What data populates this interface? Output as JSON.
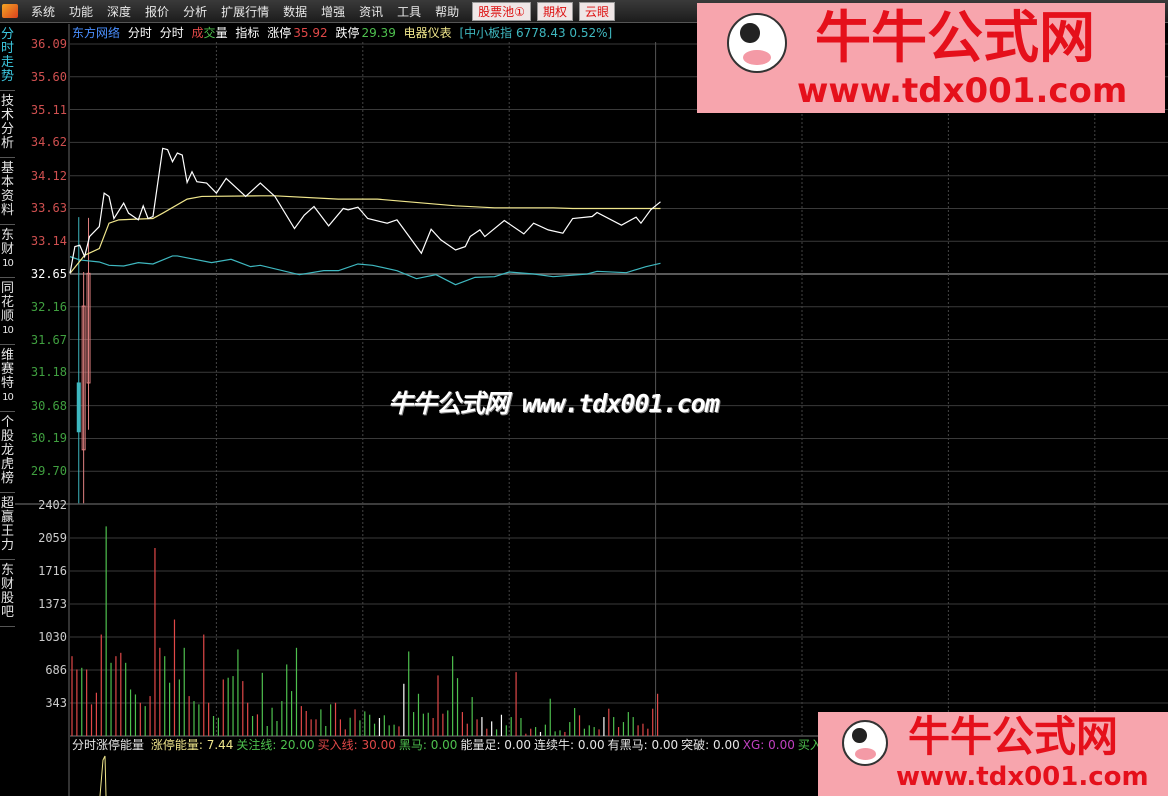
{
  "menubar": {
    "items": [
      "系统",
      "功能",
      "深度",
      "报价",
      "分析",
      "扩展行情",
      "数据",
      "增强",
      "资讯",
      "工具",
      "帮助"
    ],
    "buttons": [
      "股票池①",
      "期权",
      "云眼"
    ]
  },
  "sidebar": {
    "tabs": [
      {
        "chars": [
          "分",
          "时",
          "走",
          "势"
        ],
        "active": true
      },
      {
        "chars": [
          "技",
          "术",
          "分",
          "析"
        ]
      },
      {
        "chars": [
          "基",
          "本",
          "资",
          "料"
        ]
      },
      {
        "chars": [
          "东",
          "财",
          "10"
        ]
      },
      {
        "chars": [
          "同",
          "花",
          "顺",
          "10"
        ]
      },
      {
        "chars": [
          "维",
          "赛",
          "特",
          "10"
        ]
      },
      {
        "chars": [
          "个",
          "股",
          "龙",
          "虎",
          "榜"
        ]
      },
      {
        "chars": [
          "超",
          "赢",
          "王",
          "力"
        ]
      },
      {
        "chars": [
          "东",
          "财",
          "股",
          "吧"
        ]
      }
    ]
  },
  "header": {
    "stock_name": "东方网络",
    "mode1": "分时",
    "mode2": "分时",
    "vol_a": "成",
    "vol_b": "交",
    "vol_c": "量",
    "indicator_label": "指标",
    "limit_up_label": "涨停",
    "limit_up": "35.92",
    "limit_down_label": "跌停",
    "limit_down": "29.39",
    "sector": "电器仪表",
    "index_info": "[中小板指 6778.43 0.52%]"
  },
  "colors": {
    "up": "#e04848",
    "down": "#4ec04e",
    "price_line": "#ffffff",
    "avg_line": "#f0e68c",
    "index_line": "#3fb8c0",
    "stock_name": "#4a8fff",
    "grid": "#3a3a3a"
  },
  "chart_data": {
    "type": "line",
    "price_axis": {
      "ticks": [
        "36.09",
        "35.60",
        "35.11",
        "34.62",
        "34.12",
        "33.63",
        "33.14",
        "32.65",
        "32.16",
        "31.67",
        "31.18",
        "30.68",
        "30.19",
        "29.70"
      ],
      "ylim": [
        29.7,
        36.09
      ],
      "prev_close": 32.65
    },
    "volume_axis": {
      "ticks": [
        "2402",
        "2059",
        "1716",
        "1373",
        "1030",
        "686",
        "343"
      ],
      "ylim": [
        0,
        2402
      ]
    },
    "minutes_total": 240,
    "price": [
      [
        0,
        32.66
      ],
      [
        1,
        33.06
      ],
      [
        2,
        33.08
      ],
      [
        3,
        32.91
      ],
      [
        4,
        33.21
      ],
      [
        6,
        33.36
      ],
      [
        7,
        33.86
      ],
      [
        8,
        33.81
      ],
      [
        9,
        33.48
      ],
      [
        11,
        33.71
      ],
      [
        12,
        33.56
      ],
      [
        14,
        33.46
      ],
      [
        15,
        33.67
      ],
      [
        16,
        33.48
      ],
      [
        17,
        33.51
      ],
      [
        19,
        34.53
      ],
      [
        20,
        34.51
      ],
      [
        21,
        34.33
      ],
      [
        22,
        34.46
      ],
      [
        23,
        34.43
      ],
      [
        24,
        34.02
      ],
      [
        25,
        34.18
      ],
      [
        26,
        34.03
      ],
      [
        28,
        34.01
      ],
      [
        30,
        33.86
      ],
      [
        32,
        34.08
      ],
      [
        36,
        33.81
      ],
      [
        39,
        34.01
      ],
      [
        42,
        33.81
      ],
      [
        46,
        33.33
      ],
      [
        48,
        33.53
      ],
      [
        50,
        33.66
      ],
      [
        53,
        33.37
      ],
      [
        56,
        33.63
      ],
      [
        57,
        33.61
      ],
      [
        59,
        33.65
      ],
      [
        61,
        33.48
      ],
      [
        65,
        33.41
      ],
      [
        67,
        33.46
      ],
      [
        68,
        33.36
      ],
      [
        72,
        32.96
      ],
      [
        74,
        33.32
      ],
      [
        76,
        33.16
      ],
      [
        79,
        33.01
      ],
      [
        81,
        33.06
      ],
      [
        82,
        33.21
      ],
      [
        84,
        33.31
      ],
      [
        85,
        33.21
      ],
      [
        89,
        33.45
      ],
      [
        93,
        33.25
      ],
      [
        95,
        33.41
      ],
      [
        98,
        33.31
      ],
      [
        101,
        33.26
      ],
      [
        103,
        33.48
      ],
      [
        107,
        33.51
      ],
      [
        108,
        33.57
      ],
      [
        113,
        33.38
      ],
      [
        116,
        33.5
      ],
      [
        117,
        33.41
      ],
      [
        119,
        33.61
      ],
      [
        121,
        33.73
      ]
    ],
    "average": [
      [
        0,
        32.66
      ],
      [
        3,
        32.93
      ],
      [
        6,
        33.03
      ],
      [
        8,
        33.41
      ],
      [
        10,
        33.46
      ],
      [
        17,
        33.48
      ],
      [
        19,
        33.56
      ],
      [
        24,
        33.77
      ],
      [
        27,
        33.81
      ],
      [
        39,
        33.82
      ],
      [
        42,
        33.82
      ],
      [
        55,
        33.77
      ],
      [
        63,
        33.77
      ],
      [
        79,
        33.67
      ],
      [
        87,
        33.64
      ],
      [
        99,
        33.64
      ],
      [
        103,
        33.63
      ],
      [
        121,
        33.63
      ]
    ],
    "index_overlay": [
      [
        0,
        32.91
      ],
      [
        2,
        32.86
      ],
      [
        6,
        32.83
      ],
      [
        8,
        32.78
      ],
      [
        11,
        32.77
      ],
      [
        14,
        32.82
      ],
      [
        17,
        32.8
      ],
      [
        21,
        32.92
      ],
      [
        22,
        32.92
      ],
      [
        29,
        32.82
      ],
      [
        33,
        32.87
      ],
      [
        37,
        32.76
      ],
      [
        39,
        32.78
      ],
      [
        47,
        32.64
      ],
      [
        52,
        32.7
      ],
      [
        55,
        32.7
      ],
      [
        59,
        32.8
      ],
      [
        62,
        32.78
      ],
      [
        67,
        32.7
      ],
      [
        71,
        32.58
      ],
      [
        75,
        32.64
      ],
      [
        79,
        32.49
      ],
      [
        83,
        32.6
      ],
      [
        87,
        32.61
      ],
      [
        90,
        32.68
      ],
      [
        95,
        32.65
      ],
      [
        99,
        32.61
      ],
      [
        106,
        32.65
      ],
      [
        108,
        32.69
      ],
      [
        114,
        32.67
      ],
      [
        118,
        32.76
      ],
      [
        121,
        32.81
      ]
    ],
    "opening_bars": [
      {
        "minute": 2,
        "color": "#3fb8c0",
        "high": 33.5,
        "low": 29.22,
        "top": 31.02,
        "bottom": 30.29
      },
      {
        "minute": 3,
        "color": "#e08080",
        "high": 32.68,
        "low": 29.22,
        "top": 32.17,
        "bottom": 30.02
      },
      {
        "minute": 4,
        "color": "#e08080",
        "high": 33.49,
        "low": 30.32,
        "top": 32.66,
        "bottom": 31.02
      }
    ],
    "volume": [
      830,
      692,
      709,
      692,
      329,
      450,
      1055,
      2180,
      761,
      830,
      865,
      761,
      484,
      432,
      346,
      311,
      415,
      1955,
      917,
      830,
      554,
      1211,
      588,
      917,
      415,
      363,
      329,
      1055,
      346,
      208,
      190,
      588,
      606,
      623,
      900,
      571,
      346,
      208,
      225,
      657,
      104,
      294,
      156,
      363,
      744,
      467,
      917,
      311,
      260,
      173,
      173,
      277,
      104,
      329,
      346,
      173,
      69,
      190,
      277,
      163,
      256,
      221,
      128,
      187,
      215,
      111,
      118,
      100,
      543,
      879,
      249,
      439,
      232,
      242,
      187,
      630,
      232,
      266,
      830,
      602,
      249,
      128,
      405,
      173,
      197,
      76,
      152,
      69,
      221,
      111,
      197,
      664,
      187,
      24,
      76,
      93,
      42,
      118,
      388,
      48,
      59,
      42,
      145,
      291,
      215,
      76,
      111,
      93,
      69,
      197,
      284,
      197,
      93,
      145,
      249,
      197,
      111,
      128,
      76,
      284,
      439
    ],
    "volume_colors": "rrgrrrrggrrgggrgrrrggrggrggrrggrgggrrgrggggggggrrrrgggrrrgrggggwgggrwgggggrrrgggrrgrwrwgwggrgrrgwggggrggrgggrwrgrgggrrrrrr"
  },
  "indicator": {
    "name": "分时涨停能量",
    "items": [
      {
        "label": "涨停能量: 7.44",
        "color": "#f0e68c"
      },
      {
        "label": "关注线: 20.00",
        "color": "#4ec04e"
      },
      {
        "label": "买入线: 30.00",
        "color": "#e04848"
      },
      {
        "label": "黑马: 0.00",
        "color": "#4ec04e"
      },
      {
        "label": "能量足: 0.00",
        "color": "#e6e6e6"
      },
      {
        "label": "连续牛: 0.00",
        "color": "#e6e6e6"
      },
      {
        "label": "有黑马: 0.00",
        "color": "#e6e6e6"
      },
      {
        "label": "突破: 0.00",
        "color": "#e6e6e6"
      },
      {
        "label": "XG: 0.00",
        "color": "#c040c0"
      },
      {
        "label": "买入时机",
        "color": "#4ec04e"
      }
    ]
  },
  "watermark": {
    "brand": "牛牛公式网",
    "url": "www.tdx001.com",
    "center_text": "牛牛公式网 www.tdx001.com"
  }
}
